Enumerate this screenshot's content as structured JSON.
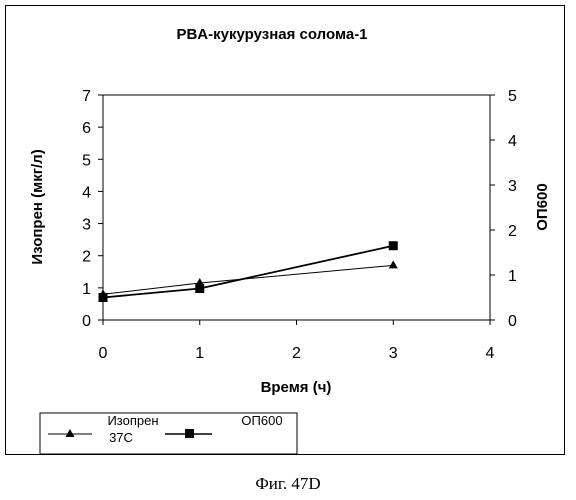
{
  "caption": "Фиг. 47D",
  "chart_data": {
    "type": "line",
    "title": "PBA-кукурузная солома-1",
    "xlabel": "Время (ч)",
    "ylabel": "Изопрен (мкг/л)",
    "y2label": "ОП600",
    "xlim": [
      0,
      4
    ],
    "ylim": [
      0,
      7
    ],
    "y2lim": [
      0,
      5
    ],
    "x_ticks": [
      "0",
      "1",
      "2",
      "3",
      "4"
    ],
    "y_ticks": [
      "0",
      "1",
      "2",
      "3",
      "4",
      "5",
      "6",
      "7"
    ],
    "y2_ticks": [
      "0",
      "1",
      "2",
      "3",
      "4",
      "5"
    ],
    "grid": false,
    "legend_position": "bottom-left",
    "series": [
      {
        "name_line1": "Изопрен",
        "name_line2": "37С",
        "axis": "left",
        "marker": "triangle",
        "x": [
          0,
          1,
          3
        ],
        "y": [
          0.8,
          1.15,
          1.7
        ]
      },
      {
        "name": "ОП600",
        "axis": "right",
        "marker": "square",
        "x": [
          0,
          1,
          3
        ],
        "y": [
          0.5,
          0.7,
          1.65
        ]
      }
    ]
  }
}
